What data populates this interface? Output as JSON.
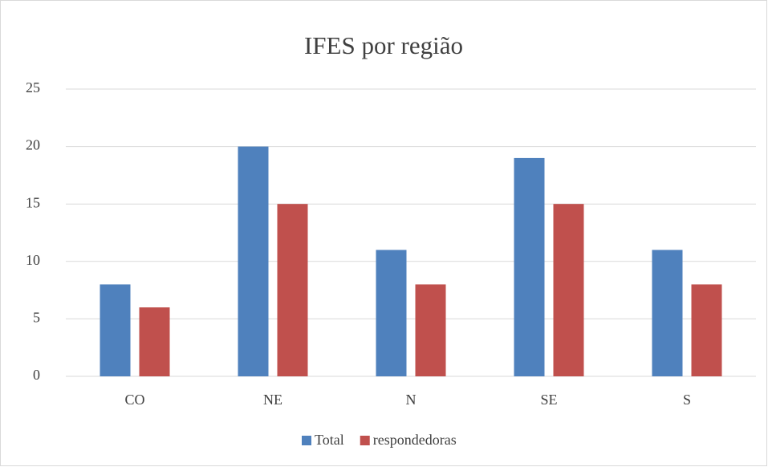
{
  "chart_data": {
    "type": "bar",
    "title": "IFES por região",
    "categories": [
      "CO",
      "NE",
      "N",
      "SE",
      "S"
    ],
    "series": [
      {
        "name": "Total",
        "color": "#4f81bd",
        "values": [
          8,
          20,
          11,
          19,
          11
        ]
      },
      {
        "name": "respondedoras",
        "color": "#c0504d",
        "values": [
          6,
          15,
          8,
          15,
          8
        ]
      }
    ],
    "ylim": [
      0,
      25
    ],
    "yticks": [
      0,
      5,
      10,
      15,
      20,
      25
    ],
    "grid": true,
    "legend": "bottom"
  }
}
